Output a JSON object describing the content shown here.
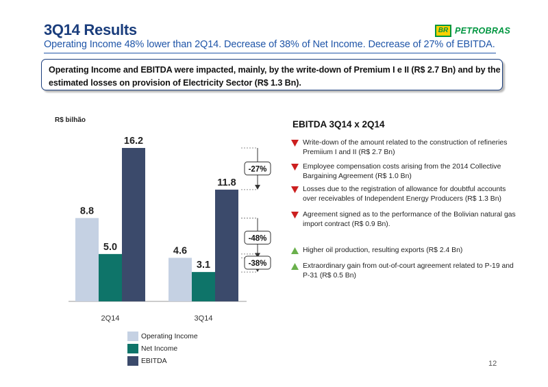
{
  "header": {
    "title": "3Q14 Results",
    "subtitle": "Operating Income 48% lower than 2Q14. Decrease of 38% of Net Income. Decrease of 27% of EBITDA.",
    "logo_text": "PETROBRAS",
    "logo_badge": "BR"
  },
  "callout": {
    "text": "Operating Income and EBITDA were impacted, mainly, by the write-down of Premium I e II (R$ 2.7 Bn) and by the estimated losses on provision of Electricity Sector (R$ 1.3 Bn)."
  },
  "chart_data": {
    "type": "bar",
    "unit_label": "R$ bilhão",
    "categories": [
      "2Q14",
      "3Q14"
    ],
    "series": [
      {
        "name": "Operating Income",
        "values": [
          8.8,
          4.6
        ],
        "color": "#c5d1e3"
      },
      {
        "name": "Net Income",
        "values": [
          5.0,
          3.1
        ],
        "color": "#0e7469"
      },
      {
        "name": "EBITDA",
        "values": [
          16.2,
          11.8
        ],
        "color": "#3b4a6b"
      }
    ],
    "value_labels": [
      [
        "8.8",
        "4.6"
      ],
      [
        "5.0",
        "3.1"
      ],
      [
        "16.2",
        "11.8"
      ]
    ],
    "ylim": [
      0,
      16.2
    ],
    "grid": false,
    "legend_position": "bottom-left",
    "change_labels": [
      {
        "series": "EBITDA",
        "text": "-27%"
      },
      {
        "series": "Operating Income",
        "text": "-48%"
      },
      {
        "series": "Net Income",
        "text": "-38%"
      }
    ]
  },
  "ebitda_panel": {
    "heading": "EBITDA 3Q14 x 2Q14",
    "down_color": "#cc1f1f",
    "up_color": "#6ab04c",
    "negatives": [
      "Write-down  of the amount related to the construction of refineries Premiium I and II (R$ 2.7 Bn)",
      "Employee compensation costs arising from the 2014 Collective Bargaining Agreement (R$ 1.0 Bn)",
      "Losses due to the registration of allowance for doubtful accounts over receivables of Independent Energy Producers (R$ 1.3 Bn)",
      "Agreement signed as to the performance of the Bolivian natural gas import contract (R$ 0.9 Bn)."
    ],
    "positives": [
      "Higher oil production, resulting exports (R$ 2.4 Bn)",
      "Extraordinary gain from out-of-court agreement related to P-19 and P-31 (R$ 0.5 Bn)"
    ]
  },
  "page_number": "12"
}
